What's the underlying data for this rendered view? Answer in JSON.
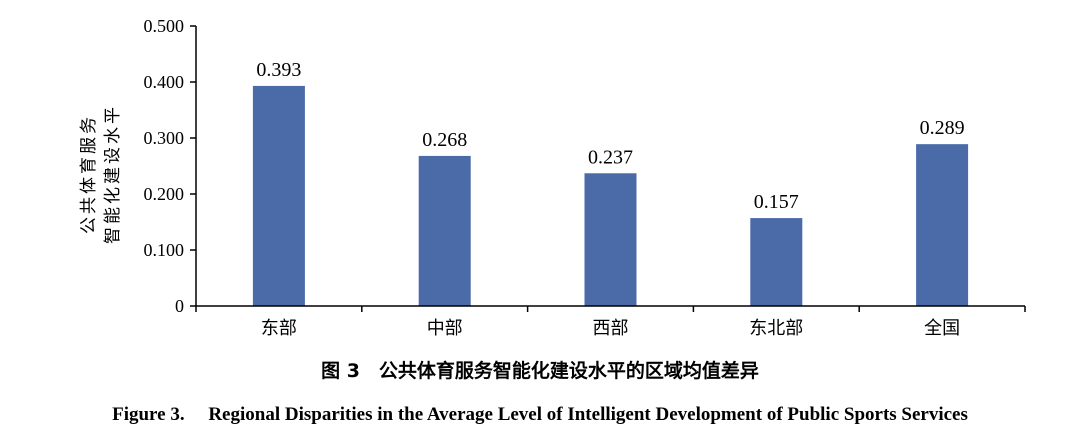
{
  "chart_data": {
    "type": "bar",
    "categories": [
      "东部",
      "中部",
      "西部",
      "东北部",
      "全国"
    ],
    "values": [
      0.393,
      0.268,
      0.237,
      0.157,
      0.289
    ],
    "value_labels": [
      "0.393",
      "0.268",
      "0.237",
      "0.157",
      "0.289"
    ],
    "ylabel_lines": [
      "公共体育服务",
      "智能化建设水平"
    ],
    "yticks": [
      0,
      0.1,
      0.2,
      0.3,
      0.4,
      0.5
    ],
    "ytick_labels": [
      "0",
      "0.100",
      "0.200",
      "0.300",
      "0.400",
      "0.500"
    ],
    "ylim": [
      0,
      0.5
    ],
    "bar_color": "#4a6aa8",
    "grid": false,
    "legend": "none"
  },
  "caption": {
    "zh": "图 3　公共体育服务智能化建设水平的区域均值差异",
    "en": "Figure 3.　 Regional Disparities in the Average Level of Intelligent Development of Public Sports Services"
  }
}
